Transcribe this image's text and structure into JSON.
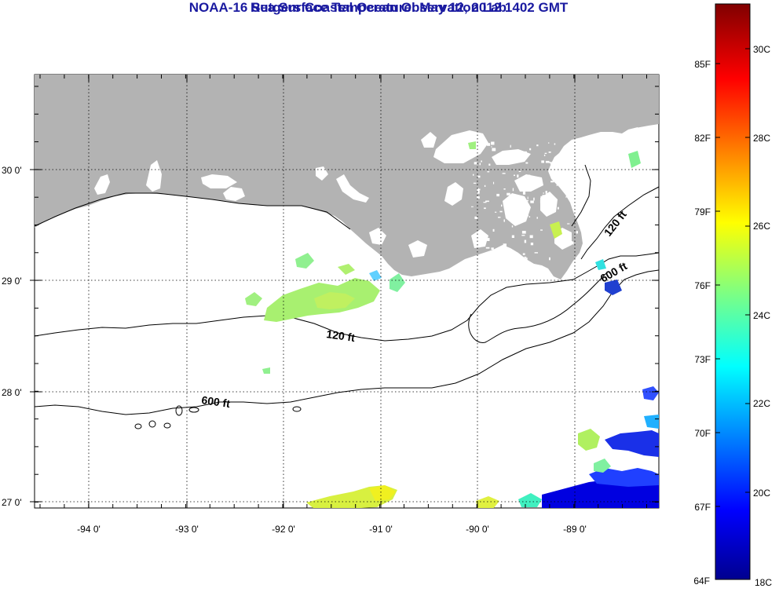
{
  "title": "NOAA-16 Sea Surface Temperature:  May 12, 2012 1402 GMT",
  "subtitle": "Rutgers Coastal Ocean Observation Lab",
  "map": {
    "lat_labels": [
      "30 0'",
      "29 0'",
      "28 0'",
      "27 0'"
    ],
    "lon_labels": [
      "-94 0'",
      "-93 0'",
      "-92 0'",
      "-91 0'",
      "-90 0'",
      "-89 0'"
    ],
    "contour_labels": [
      "120 ft",
      "600 ft",
      "120 ft",
      "600 ft"
    ],
    "land_color": "#b3b3b3"
  },
  "colorbar": {
    "fahrenheit_labels": [
      "85F",
      "82F",
      "79F",
      "76F",
      "73F",
      "70F",
      "67F",
      "64F"
    ],
    "celsius_labels": [
      "30C",
      "28C",
      "26C",
      "24C",
      "22C",
      "20C",
      "18C"
    ]
  }
}
